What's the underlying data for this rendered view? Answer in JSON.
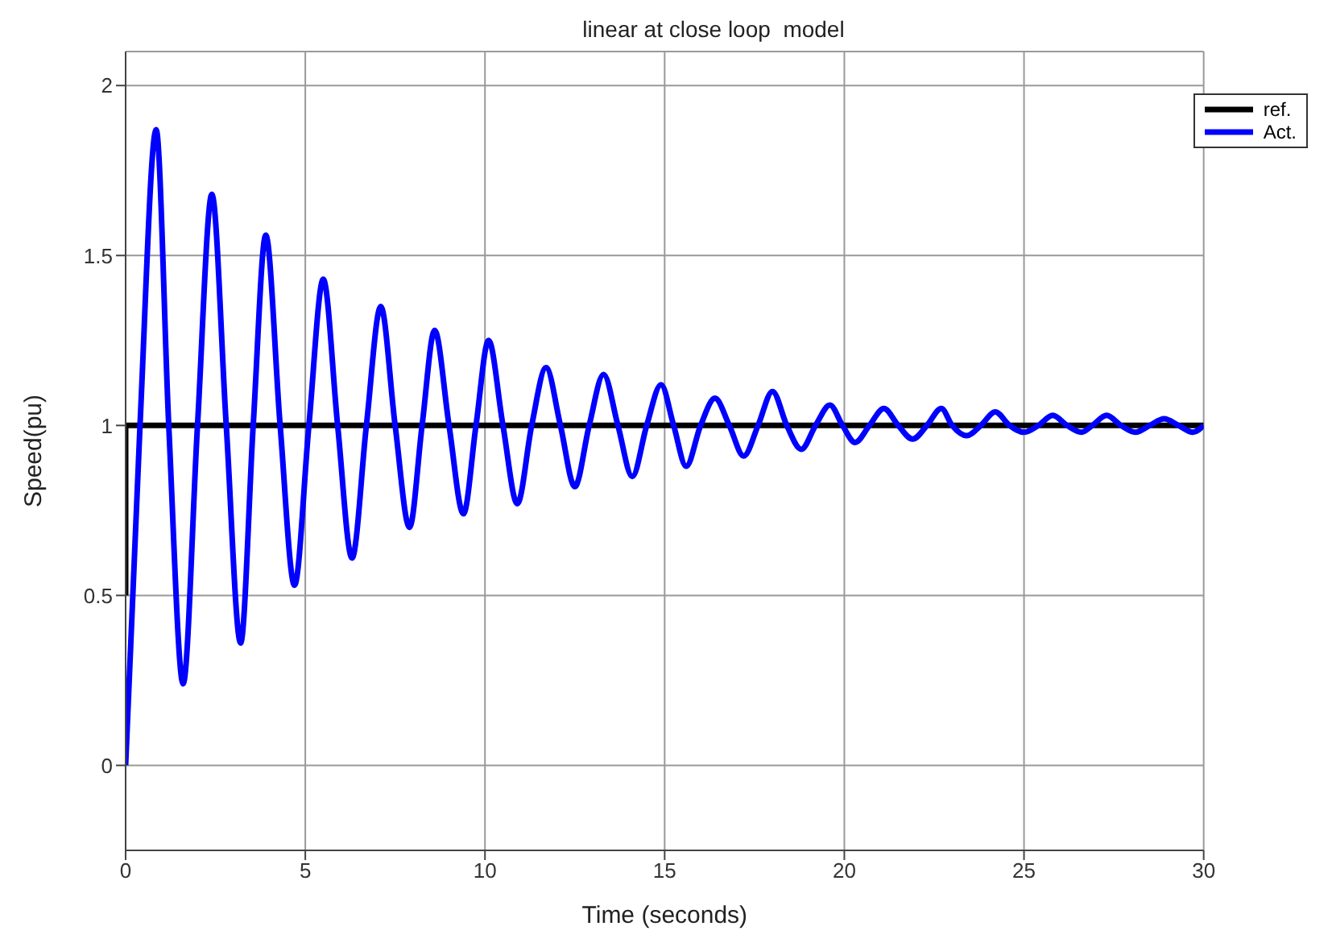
{
  "chart_data": {
    "type": "line",
    "title": "linear at close loop  model",
    "xlabel": "Time (seconds)",
    "ylabel": "Speed(pu)",
    "xlim": [
      0,
      30
    ],
    "xticks": [
      0,
      5,
      10,
      15,
      20,
      25,
      30
    ],
    "ylim": [
      -0.25,
      2.1
    ],
    "yticks": [
      0,
      0.5,
      1,
      1.5,
      2
    ],
    "grid": true,
    "legend": "top right",
    "line_style": "solid",
    "marker": "none",
    "series": [
      {
        "name": "ref.",
        "color": "#000000",
        "x": [
          0,
          0,
          30
        ],
        "values": [
          0.5,
          1,
          1
        ]
      },
      {
        "name": "Act.",
        "color": "#0000ff",
        "x": [
          0,
          0.4,
          0.85,
          1.2,
          1.6,
          2.0,
          2.4,
          2.8,
          3.2,
          3.55,
          3.9,
          4.3,
          4.7,
          5.1,
          5.5,
          5.9,
          6.3,
          6.7,
          7.1,
          7.5,
          7.9,
          8.25,
          8.6,
          9.0,
          9.4,
          9.75,
          10.1,
          10.5,
          10.9,
          11.3,
          11.7,
          12.1,
          12.5,
          12.9,
          13.3,
          13.7,
          14.1,
          14.5,
          14.9,
          15.25,
          15.6,
          16.0,
          16.4,
          16.8,
          17.2,
          17.6,
          18.0,
          18.4,
          18.8,
          19.2,
          19.6,
          19.95,
          20.3,
          20.7,
          21.1,
          21.5,
          21.9,
          22.3,
          22.7,
          23.0,
          23.4,
          23.8,
          24.2,
          24.6,
          25.0,
          25.4,
          25.8,
          26.2,
          26.6,
          26.9,
          27.3,
          27.7,
          28.1,
          28.5,
          28.9,
          29.3,
          29.7,
          30
        ],
        "values": [
          0,
          1,
          1.87,
          1,
          0.24,
          1,
          1.68,
          1,
          0.36,
          1,
          1.56,
          1,
          0.53,
          1,
          1.43,
          1,
          0.61,
          1,
          1.35,
          1,
          0.7,
          1,
          1.28,
          1,
          0.74,
          1,
          1.25,
          1,
          0.77,
          1,
          1.17,
          1,
          0.82,
          1,
          1.15,
          1,
          0.85,
          1,
          1.12,
          1,
          0.88,
          1,
          1.08,
          1,
          0.91,
          1,
          1.1,
          1,
          0.93,
          1,
          1.06,
          1,
          0.95,
          1,
          1.05,
          1,
          0.96,
          1,
          1.05,
          1,
          0.97,
          1,
          1.04,
          1,
          0.98,
          1,
          1.03,
          1,
          0.98,
          1,
          1.03,
          1,
          0.98,
          1,
          1.02,
          1,
          0.98,
          1
        ]
      }
    ]
  }
}
